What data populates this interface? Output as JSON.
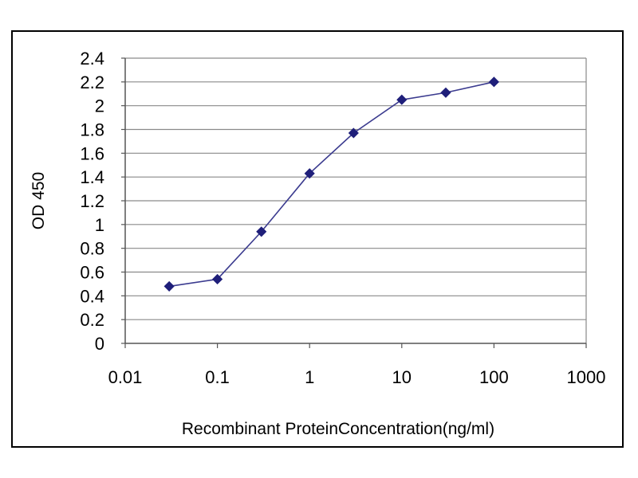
{
  "chart_data": {
    "type": "line",
    "xscale": "log",
    "xlim": [
      0.01,
      1000
    ],
    "ylim": [
      0,
      2.4
    ],
    "xticks": [
      "0.01",
      "0.1",
      "1",
      "10",
      "100",
      "1000"
    ],
    "xtick_values": [
      0.01,
      0.1,
      1,
      10,
      100,
      1000
    ],
    "yticks": [
      "0",
      "0.2",
      "0.4",
      "0.6",
      "0.8",
      "1",
      "1.2",
      "1.4",
      "1.6",
      "1.8",
      "2",
      "2.2",
      "2.4"
    ],
    "ytick_values": [
      0,
      0.2,
      0.4,
      0.6,
      0.8,
      1,
      1.2,
      1.4,
      1.6,
      1.8,
      2,
      2.2,
      2.4
    ],
    "xlabel": "Recombinant ProteinConcentration(ng/ml)",
    "ylabel": "OD 450",
    "grid": "horizontal",
    "legend": "none",
    "series": [
      {
        "x": [
          0.03,
          0.1,
          0.3,
          1,
          3,
          10,
          30,
          100
        ],
        "y": [
          0.48,
          0.54,
          0.94,
          1.43,
          1.77,
          2.05,
          2.11,
          2.2
        ],
        "color": "#1f1f7a",
        "marker": "diamond"
      }
    ]
  }
}
